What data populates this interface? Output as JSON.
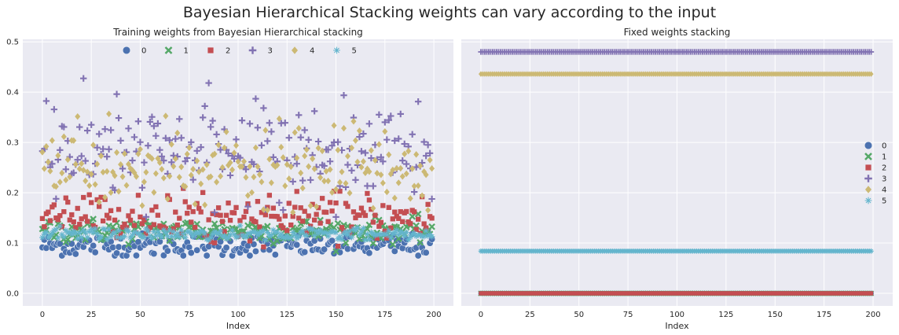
{
  "suptitle": "Bayesian Hierarchical Stacking weights can vary according to the input",
  "colors": {
    "background": "#eaeaf2",
    "grid": "#ffffff",
    "series": [
      "#4c72b0",
      "#55a868",
      "#c44e52",
      "#8172b2",
      "#ccb974",
      "#64b5cd"
    ]
  },
  "chart_data": [
    {
      "type": "scatter",
      "title": "Training weights from Bayesian Hierarchical stacking",
      "xlabel": "Index",
      "ylabel": "",
      "xlim": [
        -10,
        210
      ],
      "ylim": [
        -0.025,
        0.505
      ],
      "xticks": [
        0,
        25,
        50,
        75,
        100,
        125,
        150,
        175,
        200
      ],
      "yticks": [
        0.0,
        0.1,
        0.2,
        0.3,
        0.4,
        0.5
      ],
      "grid": true,
      "legend": {
        "placement": "top-center",
        "ncol": 6
      },
      "x": {
        "start": 0,
        "end": 199,
        "step": 1
      },
      "series": [
        {
          "name": "0",
          "marker": "circle",
          "mean": 0.095,
          "spread": 0.012,
          "values_sample": [
            0.11,
            0.103,
            0.09,
            0.098,
            0.085,
            0.105,
            0.08,
            0.092,
            0.1,
            0.088
          ]
        },
        {
          "name": "1",
          "marker": "x",
          "mean": 0.125,
          "spread": 0.012,
          "values_sample": [
            0.13,
            0.115,
            0.14,
            0.12,
            0.145,
            0.118,
            0.125,
            0.135,
            0.15,
            0.122
          ]
        },
        {
          "name": "2",
          "marker": "square",
          "mean": 0.15,
          "spread": 0.022,
          "values_sample": [
            0.2,
            0.16,
            0.14,
            0.155,
            0.17,
            0.13,
            0.165,
            0.145,
            0.175,
            0.15
          ]
        },
        {
          "name": "3",
          "marker": "plus",
          "mean": 0.28,
          "spread": 0.045,
          "values_sample": [
            0.31,
            0.24,
            0.36,
            0.29,
            0.395,
            0.27,
            0.33,
            0.25,
            0.385,
            0.3
          ]
        },
        {
          "name": "4",
          "marker": "diamond",
          "mean": 0.245,
          "spread": 0.04,
          "values_sample": [
            0.26,
            0.21,
            0.29,
            0.18,
            0.3,
            0.23,
            0.27,
            0.2,
            0.25,
            0.28
          ]
        },
        {
          "name": "5",
          "marker": "star",
          "mean": 0.118,
          "spread": 0.006,
          "values_sample": [
            0.12,
            0.115,
            0.122,
            0.112,
            0.125,
            0.118,
            0.11,
            0.121,
            0.116,
            0.119
          ]
        }
      ]
    },
    {
      "type": "scatter",
      "title": "Fixed weights stacking",
      "xlabel": "Index",
      "ylabel": "",
      "xlim": [
        -10,
        210
      ],
      "ylim": [
        -0.025,
        0.505
      ],
      "xticks": [
        0,
        25,
        50,
        75,
        100,
        125,
        150,
        175,
        200
      ],
      "yticks": [
        0.0,
        0.1,
        0.2,
        0.3,
        0.4,
        0.5
      ],
      "grid": true,
      "legend": {
        "placement": "center-right",
        "ncol": 1
      },
      "x": {
        "start": 0,
        "end": 199,
        "step": 1
      },
      "series": [
        {
          "name": "0",
          "marker": "circle",
          "constant": 0.0
        },
        {
          "name": "1",
          "marker": "x",
          "constant": 0.0
        },
        {
          "name": "2",
          "marker": "square",
          "constant": 0.0
        },
        {
          "name": "3",
          "marker": "plus",
          "constant": 0.48
        },
        {
          "name": "4",
          "marker": "diamond",
          "constant": 0.436
        },
        {
          "name": "5",
          "marker": "star",
          "constant": 0.084
        }
      ]
    }
  ]
}
